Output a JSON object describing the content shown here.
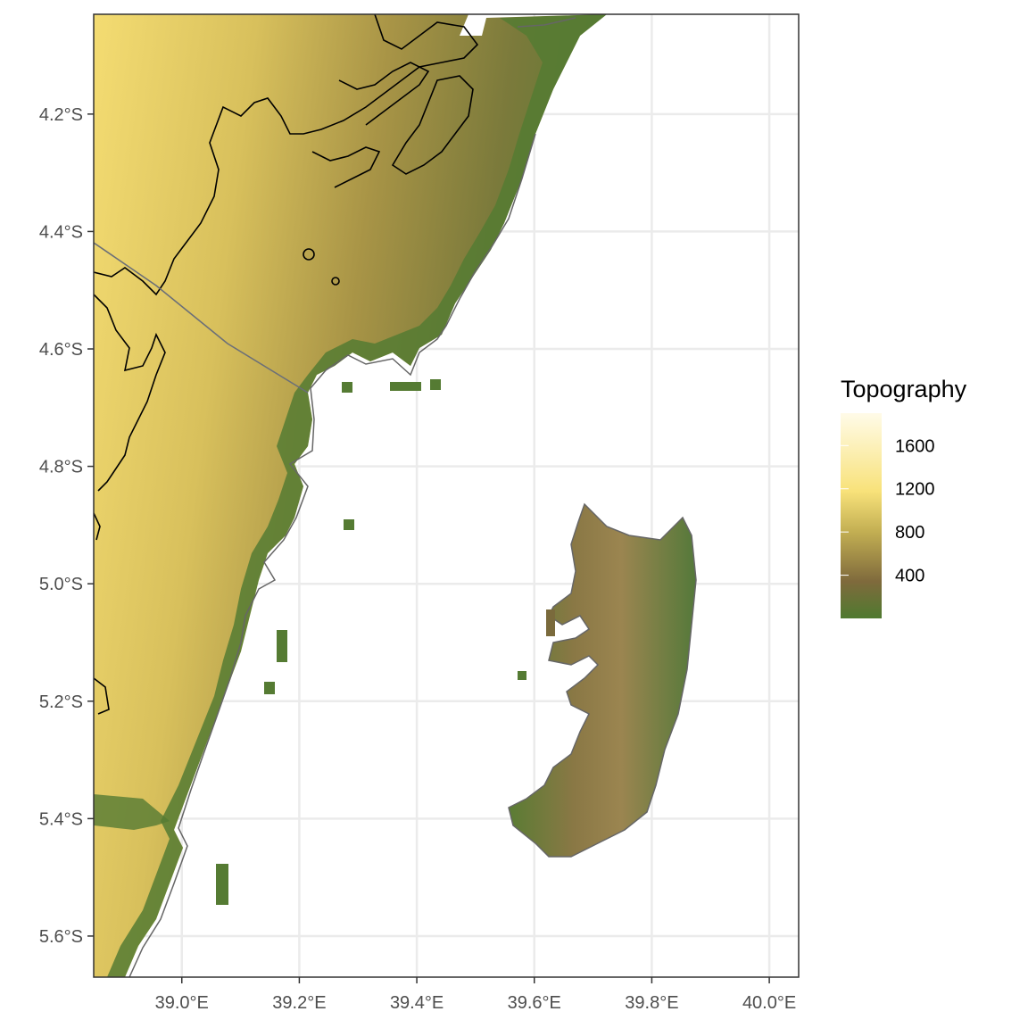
{
  "map": {
    "x_axis": {
      "ticks": [
        "39.0°E",
        "39.2°E",
        "39.4°E",
        "39.6°E",
        "39.8°E",
        "40.0°E"
      ],
      "values": [
        39.0,
        39.2,
        39.4,
        39.6,
        39.8,
        40.0
      ],
      "range": [
        38.85,
        40.05
      ]
    },
    "y_axis": {
      "ticks": [
        "4.2°S",
        "4.4°S",
        "4.6°S",
        "4.8°S",
        "5.0°S",
        "5.2°S",
        "5.4°S",
        "5.6°S"
      ],
      "values": [
        -4.2,
        -4.4,
        -4.6,
        -4.8,
        -5.0,
        -5.2,
        -5.4,
        -5.6
      ],
      "range": [
        -5.67,
        -4.03
      ]
    },
    "grid": true,
    "legend": {
      "title": "Topography",
      "position": "right",
      "labels": [
        "1600",
        "1200",
        "800",
        "400"
      ],
      "values": [
        1600,
        1200,
        800,
        400
      ],
      "range": [
        0,
        1900
      ],
      "colors": [
        "#4f7a30",
        "#7f6a3c",
        "#c2ae52",
        "#f8e27a",
        "#fff8dd"
      ]
    },
    "colors": {
      "lowland_green": "#557b33",
      "highland_yellow": "#f6e27a",
      "sea": "#ffffff",
      "contour": "#000000",
      "coastline": "#666666"
    }
  }
}
